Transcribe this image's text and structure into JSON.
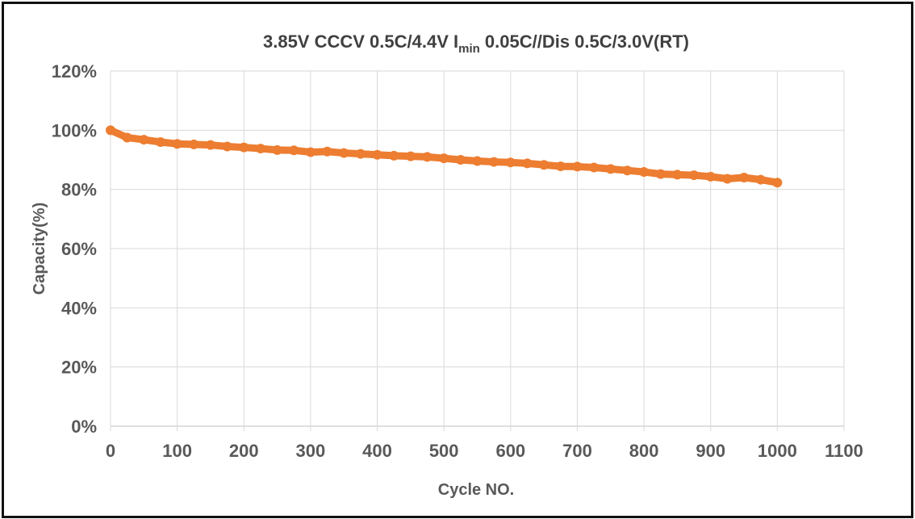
{
  "chart_data": {
    "type": "scatter",
    "title": "3.85V CCCV 0.5C/4.4V  I",
    "title_sub": "min",
    "title_rest": " 0.05C//Dis 0.5C/3.0V(RT)",
    "xlabel": "Cycle NO.",
    "ylabel": "Capacity(%)",
    "xlim": [
      0,
      1100
    ],
    "ylim": [
      0,
      120
    ],
    "grid": "vertical and horizontal",
    "x_ticks": [
      "0",
      "100",
      "200",
      "300",
      "400",
      "500",
      "600",
      "700",
      "800",
      "900",
      "1000",
      "1100"
    ],
    "y_ticks": [
      "0%",
      "20%",
      "40%",
      "60%",
      "80%",
      "100%",
      "120%"
    ],
    "color": "#ED7D31",
    "x": [
      0,
      25,
      50,
      75,
      100,
      125,
      150,
      175,
      200,
      225,
      250,
      275,
      300,
      325,
      350,
      375,
      400,
      425,
      450,
      475,
      500,
      525,
      550,
      575,
      600,
      625,
      650,
      675,
      700,
      725,
      750,
      775,
      800,
      825,
      850,
      875,
      900,
      925,
      950,
      975,
      1000
    ],
    "y": [
      100,
      97.5,
      96.8,
      96,
      95.4,
      95.2,
      95,
      94.5,
      94.2,
      93.8,
      93.3,
      93.2,
      92.6,
      92.8,
      92.3,
      92,
      91.7,
      91.4,
      91.2,
      91,
      90.5,
      90,
      89.6,
      89.3,
      89.1,
      88.8,
      88.3,
      87.8,
      87.7,
      87.4,
      86.9,
      86.4,
      85.9,
      85.2,
      85,
      84.8,
      84.3,
      83.6,
      84,
      83.3,
      82.3
    ]
  }
}
